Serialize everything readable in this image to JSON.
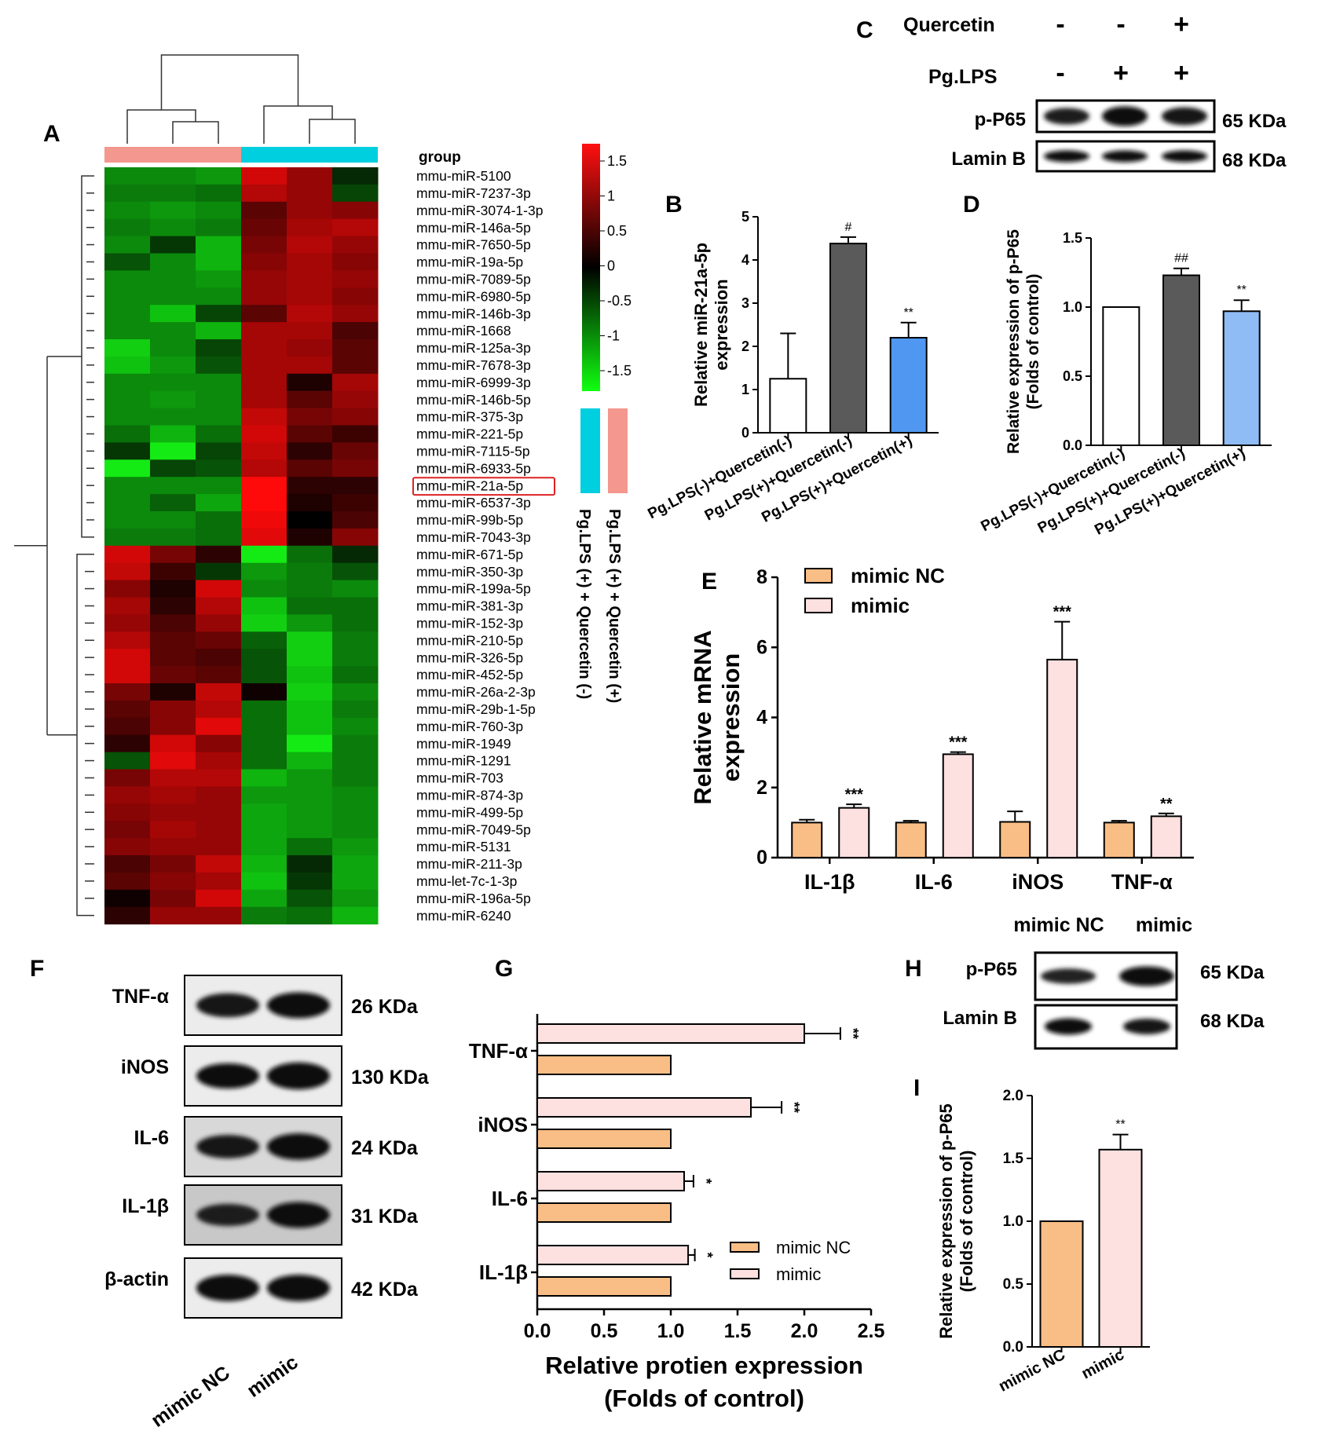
{
  "panel_letters": [
    "A",
    "B",
    "C",
    "D",
    "E",
    "F",
    "G",
    "H",
    "I"
  ],
  "heatmap": {
    "legend_title": "group",
    "scale_ticks": [
      "1.5",
      "1",
      "0.5",
      "0",
      "-0.5",
      "-1",
      "-1.5"
    ],
    "group_labels": [
      "Pg.LPS (+) + Quercetin (-)",
      "Pg.LPS (+) + Quercetin (+)"
    ],
    "group_colors": [
      "#f4978e",
      "#00cfe0"
    ],
    "highlight": "mmu-miR-21a-5p",
    "rows": [
      {
        "label": "mmu-miR-5100",
        "values": [
          -1.0,
          -1.0,
          -1.1,
          1.4,
          1.0,
          -0.3
        ]
      },
      {
        "label": "mmu-miR-7237-3p",
        "values": [
          -0.9,
          -0.9,
          -0.8,
          1.2,
          1.0,
          -0.5
        ]
      },
      {
        "label": "mmu-miR-3074-1-3p",
        "values": [
          -1.0,
          -1.1,
          -1.0,
          0.6,
          1.0,
          0.9
        ]
      },
      {
        "label": "mmu-miR-146a-5p",
        "values": [
          -0.9,
          -1.0,
          -0.9,
          0.7,
          1.1,
          1.2
        ]
      },
      {
        "label": "mmu-miR-7650-5p",
        "values": [
          -1.0,
          -0.4,
          -1.3,
          0.8,
          1.2,
          1.0
        ]
      },
      {
        "label": "mmu-miR-19a-5p",
        "values": [
          -0.6,
          -1.0,
          -1.3,
          0.9,
          1.1,
          0.9
        ]
      },
      {
        "label": "mmu-miR-7089-5p",
        "values": [
          -1.0,
          -1.0,
          -1.1,
          1.0,
          1.1,
          1.0
        ]
      },
      {
        "label": "mmu-miR-6980-5p",
        "values": [
          -1.0,
          -1.0,
          -1.0,
          1.0,
          1.1,
          0.9
        ]
      },
      {
        "label": "mmu-miR-146b-3p",
        "values": [
          -1.0,
          -1.4,
          -0.5,
          0.6,
          1.2,
          1.0
        ]
      },
      {
        "label": "mmu-miR-1668",
        "values": [
          -1.0,
          -1.0,
          -1.3,
          1.1,
          1.1,
          0.5
        ]
      },
      {
        "label": "mmu-miR-125a-3p",
        "values": [
          -1.5,
          -1.0,
          -0.5,
          1.1,
          1.0,
          0.6
        ]
      },
      {
        "label": "mmu-miR-7678-3p",
        "values": [
          -1.4,
          -1.1,
          -0.6,
          1.1,
          1.1,
          0.6
        ]
      },
      {
        "label": "mmu-miR-6999-3p",
        "values": [
          -1.0,
          -1.0,
          -1.0,
          1.1,
          0.2,
          1.1
        ]
      },
      {
        "label": "mmu-miR-146b-5p",
        "values": [
          -1.0,
          -1.1,
          -1.0,
          1.1,
          0.6,
          1.0
        ]
      },
      {
        "label": "mmu-miR-375-3p",
        "values": [
          -1.0,
          -1.0,
          -1.0,
          1.3,
          0.8,
          0.9
        ]
      },
      {
        "label": "mmu-miR-221-5p",
        "values": [
          -0.8,
          -1.3,
          -0.8,
          1.4,
          0.6,
          0.4
        ]
      },
      {
        "label": "mmu-miR-7115-5p",
        "values": [
          -0.4,
          -1.7,
          -0.5,
          1.3,
          0.3,
          0.7
        ]
      },
      {
        "label": "mmu-miR-6933-5p",
        "values": [
          -1.8,
          -0.5,
          -0.6,
          1.2,
          0.6,
          0.8
        ]
      },
      {
        "label": "mmu-miR-21a-5p",
        "values": [
          -1.0,
          -1.0,
          -1.0,
          1.7,
          0.3,
          0.3
        ]
      },
      {
        "label": "mmu-miR-6537-3p",
        "values": [
          -1.0,
          -0.7,
          -1.2,
          1.7,
          0.2,
          0.4
        ]
      },
      {
        "label": "mmu-miR-99b-5p",
        "values": [
          -1.0,
          -1.0,
          -0.8,
          1.6,
          0.0,
          0.5
        ]
      },
      {
        "label": "mmu-miR-7043-3p",
        "values": [
          -0.9,
          -0.9,
          -0.8,
          1.5,
          0.2,
          0.9
        ]
      },
      {
        "label": "mmu-miR-671-5p",
        "values": [
          1.4,
          0.8,
          0.3,
          -1.7,
          -0.8,
          -0.3
        ]
      },
      {
        "label": "mmu-miR-350-3p",
        "values": [
          1.3,
          0.4,
          -0.4,
          -1.1,
          -0.9,
          -0.6
        ]
      },
      {
        "label": "mmu-miR-199a-5p",
        "values": [
          0.9,
          0.2,
          1.4,
          -1.0,
          -0.9,
          -1.0
        ]
      },
      {
        "label": "mmu-miR-381-3p",
        "values": [
          1.1,
          0.3,
          1.2,
          -1.4,
          -0.8,
          -0.8
        ]
      },
      {
        "label": "mmu-miR-152-3p",
        "values": [
          1.0,
          0.5,
          1.0,
          -1.5,
          -1.1,
          -0.8
        ]
      },
      {
        "label": "mmu-miR-210-5p",
        "values": [
          1.2,
          0.6,
          0.7,
          -0.7,
          -1.5,
          -0.9
        ]
      },
      {
        "label": "mmu-miR-326-5p",
        "values": [
          1.4,
          0.6,
          0.5,
          -0.6,
          -1.5,
          -0.9
        ]
      },
      {
        "label": "mmu-miR-452-5p",
        "values": [
          1.4,
          0.7,
          0.6,
          -0.6,
          -1.4,
          -0.8
        ]
      },
      {
        "label": "mmu-miR-26a-2-3p",
        "values": [
          0.8,
          0.2,
          1.3,
          0.1,
          -1.5,
          -1.0
        ]
      },
      {
        "label": "mmu-miR-29b-1-5p",
        "values": [
          0.6,
          0.9,
          1.2,
          -0.8,
          -1.4,
          -0.9
        ]
      },
      {
        "label": "mmu-miR-760-3p",
        "values": [
          0.5,
          0.9,
          1.5,
          -0.8,
          -1.4,
          -1.0
        ]
      },
      {
        "label": "mmu-miR-1949",
        "values": [
          0.3,
          1.4,
          0.9,
          -0.8,
          -1.7,
          -0.9
        ]
      },
      {
        "label": "mmu-miR-1291",
        "values": [
          -0.6,
          1.5,
          1.1,
          -0.8,
          -1.3,
          -0.9
        ]
      },
      {
        "label": "mmu-miR-703",
        "values": [
          0.8,
          1.2,
          1.2,
          -1.3,
          -1.1,
          -0.9
        ]
      },
      {
        "label": "mmu-miR-874-3p",
        "values": [
          1.0,
          1.1,
          1.0,
          -1.1,
          -1.1,
          -1.0
        ]
      },
      {
        "label": "mmu-miR-499-5p",
        "values": [
          0.9,
          1.0,
          1.0,
          -1.2,
          -1.1,
          -1.0
        ]
      },
      {
        "label": "mmu-miR-7049-5p",
        "values": [
          0.8,
          1.1,
          1.0,
          -1.2,
          -1.1,
          -1.0
        ]
      },
      {
        "label": "mmu-miR-5131",
        "values": [
          0.9,
          1.0,
          1.0,
          -1.2,
          -0.8,
          -1.1
        ]
      },
      {
        "label": "mmu-miR-211-3p",
        "values": [
          0.5,
          0.8,
          1.3,
          -1.3,
          -0.3,
          -1.2
        ]
      },
      {
        "label": "mmu-let-7c-1-3p",
        "values": [
          0.6,
          0.9,
          1.1,
          -1.4,
          -0.4,
          -1.2
        ]
      },
      {
        "label": "mmu-miR-196a-5p",
        "values": [
          0.1,
          0.8,
          1.4,
          -1.2,
          -0.6,
          -1.1
        ]
      },
      {
        "label": "mmu-miR-6240",
        "values": [
          0.3,
          1.0,
          1.0,
          -0.9,
          -0.8,
          -1.3
        ]
      }
    ]
  },
  "blot_c": {
    "row_labels": [
      "Quercetin",
      "Pg.LPS"
    ],
    "quercetin_signs": [
      "-",
      "-",
      "+"
    ],
    "lps_signs": [
      "-",
      "+",
      "+"
    ],
    "bands": [
      {
        "label": "p-P65",
        "kda": "65 KDa",
        "intensity": [
          0.6,
          0.95,
          0.75
        ]
      },
      {
        "label": "Lamin B",
        "kda": "68 KDa",
        "intensity": [
          0.85,
          0.85,
          0.85
        ]
      }
    ]
  },
  "chart_data": [
    {
      "panel": "B",
      "type": "bar",
      "categories": [
        "Pg.LPS(-)+Quercetin(-)",
        "Pg.LPS(+)+Quercetin(-)",
        "Pg.LPS(+)+Quercetin(+)"
      ],
      "values": [
        1.25,
        4.38,
        2.2
      ],
      "errors": [
        1.05,
        0.15,
        0.35
      ],
      "annotations": [
        "",
        "#",
        "**"
      ],
      "colors": [
        "#ffffff",
        "#5a5a5a",
        "#4f97f0"
      ],
      "ylabel": "Relative miR-21a-5p expression",
      "ylim": [
        0,
        5
      ],
      "yticks": [
        "0",
        "1",
        "2",
        "3",
        "4",
        "5"
      ]
    },
    {
      "panel": "D",
      "type": "bar",
      "categories": [
        "Pg.LPS(-)+Quercetin(-)",
        "Pg.LPS(+)+Quercetin(-)",
        "Pg.LPS(+)+Quercetin(+)"
      ],
      "values": [
        1.0,
        1.23,
        0.97
      ],
      "errors": [
        0,
        0.05,
        0.08
      ],
      "annotations": [
        "",
        "##",
        "**"
      ],
      "colors": [
        "#ffffff",
        "#5a5a5a",
        "#8fbcf5"
      ],
      "ylabel": "Relative expression of p-P65 (Folds of control)",
      "ylim": [
        0,
        1.5
      ],
      "yticks": [
        "0.0",
        "0.5",
        "1.0",
        "1.5"
      ]
    },
    {
      "panel": "E",
      "type": "bar",
      "categories": [
        "IL-1β",
        "IL-6",
        "iNOS",
        "TNF-α"
      ],
      "series": [
        {
          "name": "mimic NC",
          "values": [
            1.0,
            1.0,
            1.02,
            1.0
          ],
          "errors": [
            0.08,
            0.05,
            0.3,
            0.05
          ],
          "color": "#f9be85"
        },
        {
          "name": "mimic",
          "values": [
            1.42,
            2.95,
            5.65,
            1.18
          ],
          "errors": [
            0.1,
            0.06,
            1.08,
            0.08
          ],
          "color": "#fde0e0"
        }
      ],
      "annotations": [
        "***",
        "***",
        "***",
        "**"
      ],
      "ylabel": "Relative mRNA expression",
      "ylim": [
        0,
        8
      ],
      "yticks": [
        "0",
        "2",
        "4",
        "6",
        "8"
      ]
    },
    {
      "panel": "G",
      "type": "bar",
      "orientation": "horizontal",
      "categories": [
        "TNF-α",
        "iNOS",
        "IL-6",
        "IL-1β"
      ],
      "series": [
        {
          "name": "mimic",
          "values": [
            2.0,
            1.6,
            1.1,
            1.13
          ],
          "errors": [
            0.27,
            0.23,
            0.07,
            0.05
          ],
          "color": "#fde0e0"
        },
        {
          "name": "mimic NC",
          "values": [
            1.0,
            1.0,
            1.0,
            1.0
          ],
          "errors": [
            0,
            0,
            0,
            0
          ],
          "color": "#f9be85"
        }
      ],
      "annotations": [
        "**",
        "**",
        "*",
        "*"
      ],
      "xlabel": "Relative protien expression (Folds of control)",
      "xlim": [
        0,
        2.5
      ],
      "xticks": [
        "0.0",
        "0.5",
        "1.0",
        "1.5",
        "2.0",
        "2.5"
      ]
    },
    {
      "panel": "I",
      "type": "bar",
      "categories": [
        "mimic NC",
        "mimic"
      ],
      "values": [
        1.0,
        1.57
      ],
      "errors": [
        0,
        0.12
      ],
      "annotations": [
        "",
        "**"
      ],
      "colors": [
        "#f9be85",
        "#fde0e0"
      ],
      "ylabel": "Relative expression of p-P65 (Folds of control)",
      "ylim": [
        0,
        2.0
      ],
      "yticks": [
        "0.0",
        "0.5",
        "1.0",
        "1.5",
        "2.0"
      ]
    }
  ],
  "blot_f": {
    "bands": [
      {
        "label": "TNF-α",
        "kda": "26 KDa",
        "intensity": [
          0.7,
          0.85
        ]
      },
      {
        "label": "iNOS",
        "kda": "130 KDa",
        "intensity": [
          0.8,
          0.95
        ]
      },
      {
        "label": "IL-6",
        "kda": "24 KDa",
        "intensity": [
          0.65,
          0.9
        ]
      },
      {
        "label": "IL-1β",
        "kda": "31 KDa",
        "intensity": [
          0.55,
          0.85
        ]
      },
      {
        "label": "β-actin",
        "kda": "42 KDa",
        "intensity": [
          0.9,
          0.9
        ]
      }
    ],
    "lanes": [
      "mimic NC",
      "mimic"
    ]
  },
  "blot_h": {
    "lanes": [
      "mimic NC",
      "mimic"
    ],
    "bands": [
      {
        "label": "p-P65",
        "kda": "65 KDa",
        "intensity": [
          0.45,
          0.95
        ]
      },
      {
        "label": "Lamin B",
        "kda": "68 KDa",
        "intensity": [
          0.85,
          0.75
        ]
      }
    ]
  }
}
